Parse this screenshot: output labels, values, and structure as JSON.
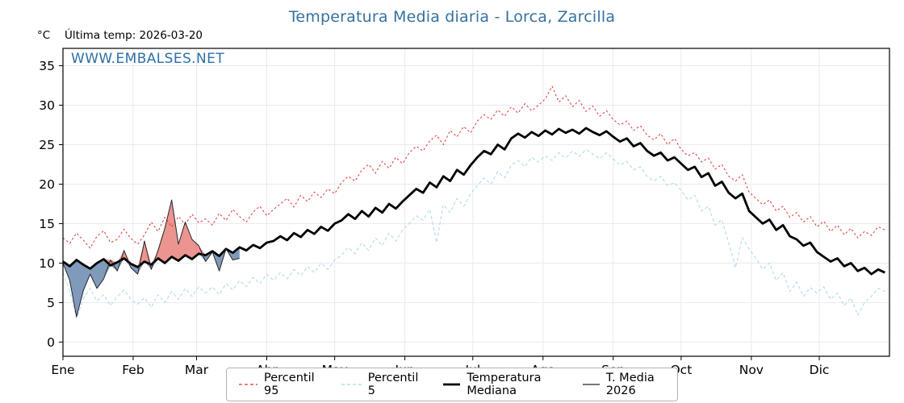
{
  "title": "Temperatura Media diaria - Lorca, Zarcilla",
  "header": {
    "unit": "°C",
    "last_temp": "Última temp: 2026-03-20"
  },
  "watermark": "WWW.EMBALSES.NET",
  "colors": {
    "title": "#35719f",
    "watermark": "#2e6fa8",
    "grid": "#e9e9f0",
    "spine": "#000000",
    "fill_above": "rgba(224,90,85,0.65)",
    "fill_below": "rgba(85,120,165,0.75)"
  },
  "chart_data": {
    "type": "line",
    "title": "Temperatura Media diaria - Lorca, Zarcilla",
    "xlabel": "",
    "ylabel": "°C",
    "xlim": [
      1,
      366
    ],
    "ylim": [
      -1.8,
      37.2
    ],
    "yticks": [
      0,
      5,
      10,
      15,
      20,
      25,
      30,
      35
    ],
    "xticks": {
      "days": [
        1,
        32,
        60,
        91,
        121,
        152,
        182,
        213,
        244,
        274,
        305,
        335
      ],
      "labels": [
        "Ene",
        "Feb",
        "Mar",
        "Abr",
        "May",
        "Jun",
        "Jul",
        "Ago",
        "Sep",
        "Oct",
        "Nov",
        "Dic"
      ]
    },
    "grid": true,
    "legend_position": "bottom-center",
    "sample_start_day": 1,
    "sample_step_days": 3,
    "fill": {
      "between": "T. Media 2026 vs Temperatura Mediana",
      "above_color": "rgba(224,90,85,0.65)",
      "below_color": "rgba(85,120,165,0.75)"
    },
    "series": [
      {
        "name": "Percentil 95",
        "color": "#e03131",
        "style": "dashed",
        "width": 1,
        "values": [
          13.2,
          12.5,
          13.8,
          12.9,
          11.9,
          13.4,
          14.1,
          12.6,
          13.0,
          14.3,
          13.1,
          12.4,
          13.6,
          15.2,
          14.0,
          15.8,
          14.6,
          15.9,
          14.9,
          16.2,
          15.1,
          15.6,
          14.8,
          16.3,
          15.4,
          16.8,
          15.9,
          15.2,
          16.5,
          17.2,
          16.0,
          16.8,
          17.5,
          18.2,
          17.1,
          18.6,
          17.8,
          19.0,
          18.3,
          19.4,
          18.8,
          20.2,
          21.0,
          20.4,
          21.8,
          22.5,
          21.4,
          22.9,
          22.0,
          23.4,
          22.6,
          24.0,
          24.8,
          24.2,
          25.5,
          26.2,
          25.0,
          26.8,
          26.0,
          27.3,
          26.5,
          28.0,
          28.8,
          28.2,
          29.4,
          28.6,
          29.8,
          29.0,
          30.2,
          29.3,
          30.0,
          30.8,
          32.4,
          30.4,
          31.2,
          29.8,
          30.6,
          29.2,
          29.9,
          28.6,
          29.3,
          28.2,
          27.5,
          28.0,
          26.8,
          27.4,
          26.2,
          25.6,
          26.4,
          25.0,
          25.8,
          24.4,
          23.6,
          24.0,
          22.8,
          23.3,
          21.9,
          22.5,
          21.0,
          20.4,
          21.2,
          19.0,
          18.2,
          17.4,
          18.0,
          16.6,
          17.2,
          15.8,
          16.4,
          15.2,
          15.9,
          14.6,
          15.3,
          14.0,
          14.8,
          13.6,
          14.4,
          13.2,
          14.0,
          13.5,
          14.6,
          14.2
        ]
      },
      {
        "name": "Percentil 5",
        "color": "#a8d8e8",
        "style": "dashed",
        "width": 1,
        "values": [
          8.8,
          6.5,
          3.0,
          5.5,
          6.8,
          5.2,
          6.0,
          4.6,
          5.8,
          6.6,
          5.4,
          4.8,
          5.6,
          4.4,
          6.0,
          5.0,
          6.4,
          5.4,
          6.8,
          5.8,
          7.0,
          6.2,
          7.0,
          6.0,
          7.4,
          6.6,
          7.8,
          7.0,
          8.2,
          7.4,
          8.6,
          7.8,
          8.8,
          8.0,
          9.2,
          8.4,
          9.6,
          8.8,
          10.0,
          9.2,
          10.4,
          11.0,
          12.0,
          11.2,
          12.6,
          11.6,
          13.2,
          12.2,
          13.8,
          12.8,
          14.2,
          15.0,
          16.0,
          15.4,
          16.8,
          12.6,
          17.4,
          16.4,
          18.2,
          17.2,
          18.8,
          19.8,
          20.8,
          20.0,
          21.6,
          20.8,
          22.4,
          23.0,
          22.2,
          23.4,
          22.8,
          23.6,
          23.0,
          24.0,
          23.3,
          24.2,
          23.5,
          24.4,
          23.8,
          23.2,
          24.0,
          23.2,
          22.4,
          22.9,
          21.8,
          22.2,
          21.0,
          20.4,
          21.0,
          19.8,
          20.2,
          19.2,
          18.0,
          18.6,
          16.6,
          17.2,
          14.8,
          15.5,
          12.6,
          9.4,
          13.2,
          11.8,
          10.6,
          9.2,
          10.0,
          7.8,
          8.8,
          6.4,
          7.6,
          5.8,
          6.9,
          6.2,
          7.0,
          5.4,
          6.2,
          4.6,
          5.6,
          3.4,
          5.0,
          5.8,
          6.8,
          6.4
        ]
      },
      {
        "name": "Temperatura Mediana",
        "color": "#000000",
        "style": "solid",
        "width": 2.8,
        "values": [
          10.2,
          9.6,
          10.4,
          9.8,
          9.3,
          10.0,
          10.5,
          9.7,
          10.1,
          10.6,
          9.9,
          9.5,
          10.2,
          9.8,
          10.6,
          10.0,
          10.8,
          10.3,
          11.0,
          10.5,
          11.2,
          11.0,
          11.5,
          10.9,
          11.8,
          11.3,
          12.0,
          11.6,
          12.3,
          11.9,
          12.6,
          12.8,
          13.4,
          12.9,
          13.8,
          13.3,
          14.2,
          13.7,
          14.6,
          14.1,
          15.0,
          15.4,
          16.2,
          15.6,
          16.6,
          15.9,
          17.0,
          16.4,
          17.5,
          16.9,
          17.8,
          18.6,
          19.4,
          18.9,
          20.2,
          19.6,
          21.0,
          20.4,
          21.8,
          21.2,
          22.4,
          23.4,
          24.2,
          23.8,
          25.0,
          24.4,
          25.8,
          26.4,
          25.9,
          26.6,
          26.1,
          26.8,
          26.3,
          27.0,
          26.5,
          26.9,
          26.4,
          27.1,
          26.6,
          26.2,
          26.7,
          26.0,
          25.4,
          25.8,
          24.8,
          25.2,
          24.2,
          23.6,
          24.0,
          23.0,
          23.4,
          22.6,
          21.8,
          22.2,
          20.9,
          21.4,
          19.8,
          20.3,
          18.9,
          18.2,
          18.8,
          16.6,
          15.8,
          15.0,
          15.5,
          14.2,
          14.8,
          13.4,
          13.0,
          12.2,
          12.6,
          11.4,
          10.8,
          10.2,
          10.6,
          9.6,
          10.0,
          9.0,
          9.4,
          8.6,
          9.2,
          8.8
        ]
      },
      {
        "name": "T. Media 2026",
        "color": "#262626",
        "style": "solid",
        "width": 1,
        "values": [
          10.0,
          7.8,
          3.2,
          6.5,
          8.6,
          6.8,
          8.0,
          10.4,
          9.0,
          11.6,
          9.4,
          8.6,
          12.8,
          9.2,
          11.6,
          14.4,
          18.0,
          12.4,
          15.2,
          13.0,
          12.2,
          10.2,
          11.4,
          9.0,
          11.8,
          10.4,
          10.6
        ]
      }
    ]
  }
}
